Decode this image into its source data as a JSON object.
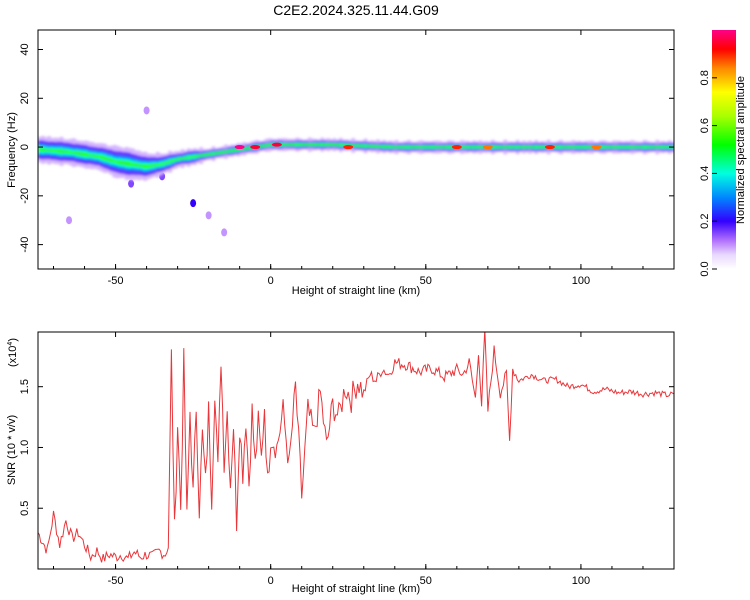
{
  "chart_data": [
    {
      "type": "heatmap",
      "title": "C2E2.2024.325.11.44.G09",
      "xlabel": "Height of straight line (km)",
      "ylabel": "Frequency (Hz)",
      "xlim": [
        -75,
        130
      ],
      "ylim": [
        -50,
        48
      ],
      "xticks": [
        -50,
        0,
        50,
        100
      ],
      "yticks": [
        40,
        20,
        0,
        -20,
        -40
      ],
      "x_tick_labels": [
        "-50",
        "0",
        "50",
        "100"
      ],
      "y_tick_labels": [
        "40",
        "20",
        "0",
        "-20",
        "-40"
      ],
      "colorbar": {
        "label": "Normalized spectral amplitude",
        "range": [
          0,
          1
        ],
        "ticks": [
          0.0,
          0.2,
          0.4,
          0.6,
          0.8
        ],
        "tick_labels": [
          "0.0",
          "0.2",
          "0.4",
          "0.6",
          "0.8"
        ]
      },
      "ridge": {
        "x": [
          -75,
          -65,
          -55,
          -50,
          -45,
          -40,
          -35,
          -30,
          -25,
          -20,
          -15,
          -10,
          -5,
          0,
          10,
          20,
          40,
          60,
          80,
          100,
          130
        ],
        "center_freq": [
          -1,
          -2,
          -4,
          -6,
          -7,
          -8,
          -7,
          -5,
          -4,
          -3,
          -2,
          -1,
          0,
          1,
          1,
          1,
          0,
          0,
          0,
          0,
          0
        ],
        "spread": [
          5,
          5,
          5,
          6,
          6,
          5,
          4,
          3,
          3,
          2,
          2,
          2,
          2,
          2,
          2,
          2,
          2,
          2,
          2,
          2,
          2
        ]
      },
      "peaks": [
        {
          "x": -10,
          "freq": 0,
          "amplitude": 1.0
        },
        {
          "x": -5,
          "freq": 0,
          "amplitude": 0.95
        },
        {
          "x": 2,
          "freq": 1,
          "amplitude": 0.95
        },
        {
          "x": 25,
          "freq": 0,
          "amplitude": 0.9
        },
        {
          "x": 60,
          "freq": 0,
          "amplitude": 0.9
        },
        {
          "x": 70,
          "freq": 0,
          "amplitude": 0.85
        },
        {
          "x": 90,
          "freq": 0,
          "amplitude": 0.9
        },
        {
          "x": 105,
          "freq": 0,
          "amplitude": 0.85
        }
      ],
      "scatter_blobs": [
        {
          "x": -65,
          "freq": -30,
          "amplitude": 0.1
        },
        {
          "x": -40,
          "freq": 15,
          "amplitude": 0.1
        },
        {
          "x": -25,
          "freq": -23,
          "amplitude": 0.2
        },
        {
          "x": -20,
          "freq": -28,
          "amplitude": 0.1
        },
        {
          "x": -15,
          "freq": -35,
          "amplitude": 0.1
        },
        {
          "x": -45,
          "freq": -15,
          "amplitude": 0.15
        },
        {
          "x": -35,
          "freq": -12,
          "amplitude": 0.15
        }
      ]
    },
    {
      "type": "line",
      "xlabel": "Height of straight line (km)",
      "ylabel": "SNR (10 * v/v)",
      "y_multiplier_label": "(x10",
      "y_multiplier_exp": "4",
      "xlim": [
        -75,
        130
      ],
      "ylim": [
        0,
        1.95
      ],
      "xticks": [
        -50,
        0,
        50,
        100
      ],
      "yticks": [
        0.5,
        1.0,
        1.5
      ],
      "x_tick_labels": [
        "-50",
        "0",
        "50",
        "100"
      ],
      "y_tick_labels": [
        "0.5",
        "1.0",
        "1.5"
      ],
      "color": "#e8363a",
      "series": [
        {
          "name": "SNR",
          "x": [
            -75,
            -72,
            -70,
            -68,
            -66,
            -64,
            -62,
            -60,
            -58,
            -56,
            -54,
            -52,
            -50,
            -48,
            -46,
            -44,
            -42,
            -40,
            -38,
            -36,
            -34,
            -33,
            -32,
            -31,
            -30,
            -29,
            -28,
            -27,
            -26,
            -25,
            -24,
            -23,
            -22,
            -21,
            -20,
            -19,
            -18,
            -17,
            -16,
            -15,
            -14,
            -13,
            -12,
            -11,
            -10,
            -9,
            -8,
            -7,
            -6,
            -5,
            -4,
            -3,
            -2,
            -1,
            0,
            2,
            4,
            6,
            8,
            10,
            12,
            14,
            16,
            18,
            20,
            22,
            24,
            26,
            28,
            30,
            32,
            34,
            36,
            38,
            40,
            44,
            48,
            52,
            56,
            60,
            62,
            64,
            66,
            67,
            68,
            69,
            70,
            72,
            74,
            76,
            77,
            78,
            80,
            84,
            88,
            92,
            96,
            100,
            104,
            108,
            112,
            116,
            120,
            124,
            128,
            130
          ],
          "y": [
            0.3,
            0.15,
            0.45,
            0.2,
            0.4,
            0.25,
            0.3,
            0.2,
            0.1,
            0.15,
            0.08,
            0.12,
            0.1,
            0.12,
            0.08,
            0.14,
            0.1,
            0.12,
            0.1,
            0.15,
            0.12,
            0.2,
            1.75,
            0.3,
            1.2,
            0.5,
            1.7,
            0.4,
            1.3,
            0.6,
            1.35,
            0.5,
            1.1,
            0.7,
            1.3,
            0.6,
            1.5,
            0.8,
            1.75,
            0.9,
            1.3,
            0.7,
            1.2,
            0.4,
            1.2,
            0.8,
            1.25,
            0.7,
            1.3,
            0.85,
            1.2,
            0.9,
            1.35,
            0.7,
            1.1,
            1.0,
            1.3,
            0.85,
            1.5,
            0.6,
            1.3,
            1.1,
            1.45,
            1.0,
            1.35,
            1.25,
            1.5,
            1.4,
            1.55,
            1.45,
            1.6,
            1.55,
            1.65,
            1.6,
            1.7,
            1.68,
            1.62,
            1.65,
            1.58,
            1.64,
            1.6,
            1.7,
            1.4,
            1.8,
            1.35,
            1.95,
            1.3,
            1.8,
            1.45,
            1.6,
            1.05,
            1.65,
            1.55,
            1.6,
            1.55,
            1.56,
            1.5,
            1.52,
            1.46,
            1.48,
            1.45,
            1.46,
            1.44,
            1.45,
            1.43,
            1.44
          ]
        }
      ]
    }
  ]
}
